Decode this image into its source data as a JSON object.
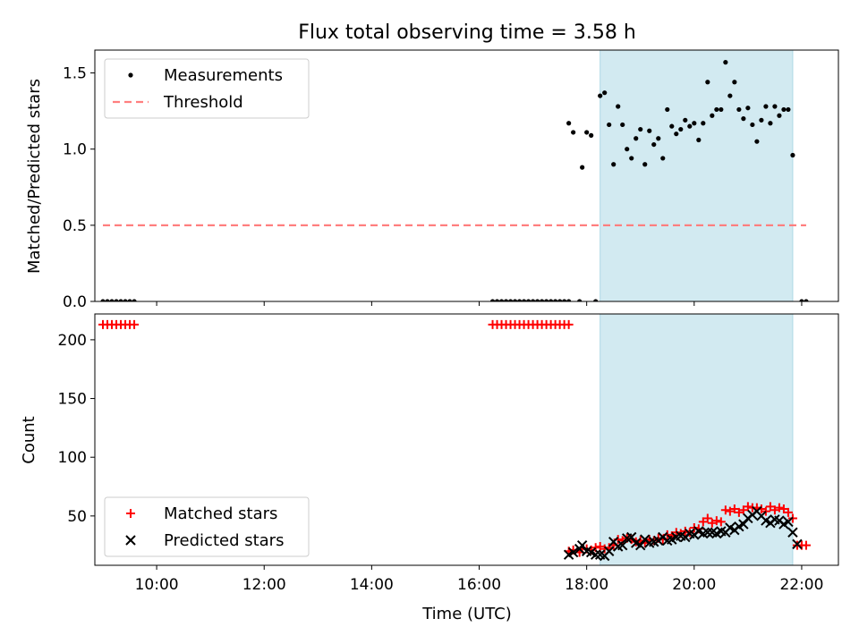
{
  "figure": {
    "title": "Flux total observing time = 3.58 h",
    "xlabel": "Time (UTC)"
  },
  "colors": {
    "measurement": "#000000",
    "threshold": "#ff7f7f",
    "matched": "#ff0000",
    "predicted": "#000000",
    "shade": "#add8e6"
  },
  "chart_data": [
    {
      "type": "scatter",
      "panel": "top",
      "ylabel": "Matched/Predicted stars",
      "xlim": [
        "08:51",
        "22:41"
      ],
      "ylim": [
        0,
        1.65
      ],
      "yticks": [
        0.0,
        0.5,
        1.0,
        1.5
      ],
      "ytick_labels": [
        "0.0",
        "0.5",
        "1.0",
        "1.5"
      ],
      "x_ticks_labeled": false,
      "legend_position": "upper left",
      "shaded_interval": [
        "18:15",
        "21:50"
      ],
      "series": [
        {
          "name": "Measurements",
          "kind": "points",
          "points": [
            [
              "09:00",
              0
            ],
            [
              "09:05",
              0
            ],
            [
              "09:10",
              0
            ],
            [
              "09:15",
              0
            ],
            [
              "09:20",
              0
            ],
            [
              "09:25",
              0
            ],
            [
              "09:30",
              0
            ],
            [
              "09:35",
              0
            ],
            [
              "16:15",
              0
            ],
            [
              "16:20",
              0
            ],
            [
              "16:25",
              0
            ],
            [
              "16:30",
              0
            ],
            [
              "16:35",
              0
            ],
            [
              "16:40",
              0
            ],
            [
              "16:45",
              0
            ],
            [
              "16:50",
              0
            ],
            [
              "16:55",
              0
            ],
            [
              "17:00",
              0
            ],
            [
              "17:05",
              0
            ],
            [
              "17:10",
              0
            ],
            [
              "17:15",
              0
            ],
            [
              "17:20",
              0
            ],
            [
              "17:25",
              0
            ],
            [
              "17:30",
              0
            ],
            [
              "17:35",
              0
            ],
            [
              "17:40",
              0
            ],
            [
              "17:40",
              1.17
            ],
            [
              "17:45",
              1.11
            ],
            [
              "17:52",
              0
            ],
            [
              "17:55",
              0.88
            ],
            [
              "18:00",
              1.11
            ],
            [
              "18:05",
              1.09
            ],
            [
              "18:10",
              0
            ],
            [
              "18:15",
              1.35
            ],
            [
              "18:20",
              1.37
            ],
            [
              "18:25",
              1.16
            ],
            [
              "18:30",
              0.9
            ],
            [
              "18:35",
              1.28
            ],
            [
              "18:40",
              1.16
            ],
            [
              "18:45",
              1.0
            ],
            [
              "18:50",
              0.94
            ],
            [
              "18:55",
              1.07
            ],
            [
              "19:00",
              1.13
            ],
            [
              "19:05",
              0.9
            ],
            [
              "19:10",
              1.12
            ],
            [
              "19:15",
              1.03
            ],
            [
              "19:20",
              1.07
            ],
            [
              "19:25",
              0.94
            ],
            [
              "19:30",
              1.26
            ],
            [
              "19:35",
              1.15
            ],
            [
              "19:40",
              1.1
            ],
            [
              "19:45",
              1.13
            ],
            [
              "19:50",
              1.19
            ],
            [
              "19:55",
              1.15
            ],
            [
              "20:00",
              1.17
            ],
            [
              "20:05",
              1.06
            ],
            [
              "20:10",
              1.17
            ],
            [
              "20:15",
              1.44
            ],
            [
              "20:20",
              1.22
            ],
            [
              "20:25",
              1.26
            ],
            [
              "20:30",
              1.26
            ],
            [
              "20:35",
              1.57
            ],
            [
              "20:40",
              1.35
            ],
            [
              "20:45",
              1.44
            ],
            [
              "20:50",
              1.26
            ],
            [
              "20:55",
              1.2
            ],
            [
              "21:00",
              1.27
            ],
            [
              "21:05",
              1.16
            ],
            [
              "21:10",
              1.05
            ],
            [
              "21:15",
              1.19
            ],
            [
              "21:20",
              1.28
            ],
            [
              "21:25",
              1.17
            ],
            [
              "21:30",
              1.28
            ],
            [
              "21:35",
              1.22
            ],
            [
              "21:40",
              1.26
            ],
            [
              "21:45",
              1.26
            ],
            [
              "21:50",
              0.96
            ],
            [
              "22:00",
              0
            ],
            [
              "22:05",
              0
            ]
          ]
        },
        {
          "name": "Threshold",
          "kind": "dashed-line",
          "points": [
            [
              "09:00",
              0.5
            ],
            [
              "22:05",
              0.5
            ]
          ]
        }
      ]
    },
    {
      "type": "scatter",
      "panel": "bottom",
      "ylabel": "Count",
      "xlim": [
        "08:51",
        "22:41"
      ],
      "ylim": [
        8,
        222
      ],
      "yticks": [
        50,
        100,
        150,
        200
      ],
      "ytick_labels": [
        "50",
        "100",
        "150",
        "200"
      ],
      "xticks": [
        "10:00",
        "12:00",
        "14:00",
        "16:00",
        "18:00",
        "20:00",
        "22:00"
      ],
      "xtick_labels": [
        "10:00",
        "12:00",
        "14:00",
        "16:00",
        "18:00",
        "20:00",
        "22:00"
      ],
      "legend_position": "lower left",
      "shaded_interval": [
        "18:15",
        "21:50"
      ],
      "series": [
        {
          "name": "Matched stars",
          "marker": "plus",
          "points": [
            [
              "09:00",
              213
            ],
            [
              "09:05",
              213
            ],
            [
              "09:10",
              213
            ],
            [
              "09:15",
              213
            ],
            [
              "09:20",
              213
            ],
            [
              "09:25",
              213
            ],
            [
              "09:30",
              213
            ],
            [
              "09:35",
              213
            ],
            [
              "16:15",
              213
            ],
            [
              "16:20",
              213
            ],
            [
              "16:25",
              213
            ],
            [
              "16:30",
              213
            ],
            [
              "16:35",
              213
            ],
            [
              "16:40",
              213
            ],
            [
              "16:45",
              213
            ],
            [
              "16:50",
              213
            ],
            [
              "16:55",
              213
            ],
            [
              "17:00",
              213
            ],
            [
              "17:05",
              213
            ],
            [
              "17:10",
              213
            ],
            [
              "17:15",
              213
            ],
            [
              "17:20",
              213
            ],
            [
              "17:25",
              213
            ],
            [
              "17:30",
              213
            ],
            [
              "17:35",
              213
            ],
            [
              "17:40",
              213
            ],
            [
              "17:40",
              20
            ],
            [
              "17:45",
              21
            ],
            [
              "17:52",
              19
            ],
            [
              "17:55",
              22
            ],
            [
              "18:00",
              22
            ],
            [
              "18:05",
              21
            ],
            [
              "18:10",
              23
            ],
            [
              "18:15",
              24
            ],
            [
              "18:20",
              22
            ],
            [
              "18:25",
              23
            ],
            [
              "18:30",
              25
            ],
            [
              "18:35",
              30
            ],
            [
              "18:40",
              29
            ],
            [
              "18:45",
              31
            ],
            [
              "18:50",
              30
            ],
            [
              "18:55",
              28
            ],
            [
              "19:00",
              29
            ],
            [
              "19:05",
              27
            ],
            [
              "19:10",
              30
            ],
            [
              "19:15",
              29
            ],
            [
              "19:20",
              31
            ],
            [
              "19:25",
              30
            ],
            [
              "19:30",
              34
            ],
            [
              "19:35",
              33
            ],
            [
              "19:40",
              36
            ],
            [
              "19:45",
              35
            ],
            [
              "19:50",
              37
            ],
            [
              "19:55",
              36
            ],
            [
              "20:00",
              40
            ],
            [
              "20:05",
              39
            ],
            [
              "20:10",
              45
            ],
            [
              "20:15",
              48
            ],
            [
              "20:20",
              44
            ],
            [
              "20:25",
              46
            ],
            [
              "20:30",
              45
            ],
            [
              "20:35",
              55
            ],
            [
              "20:40",
              54
            ],
            [
              "20:45",
              56
            ],
            [
              "20:50",
              53
            ],
            [
              "20:55",
              55
            ],
            [
              "21:00",
              58
            ],
            [
              "21:05",
              57
            ],
            [
              "21:10",
              57
            ],
            [
              "21:15",
              56
            ],
            [
              "21:20",
              54
            ],
            [
              "21:25",
              58
            ],
            [
              "21:30",
              55
            ],
            [
              "21:35",
              57
            ],
            [
              "21:40",
              56
            ],
            [
              "21:45",
              53
            ],
            [
              "21:50",
              48
            ],
            [
              "21:55",
              25
            ],
            [
              "22:00",
              25
            ],
            [
              "22:05",
              25
            ]
          ]
        },
        {
          "name": "Predicted stars",
          "marker": "x",
          "points": [
            [
              "17:40",
              17
            ],
            [
              "17:45",
              19
            ],
            [
              "17:52",
              22
            ],
            [
              "17:55",
              25
            ],
            [
              "18:00",
              20
            ],
            [
              "18:05",
              19
            ],
            [
              "18:10",
              17
            ],
            [
              "18:15",
              17
            ],
            [
              "18:20",
              16
            ],
            [
              "18:25",
              20
            ],
            [
              "18:30",
              28
            ],
            [
              "18:35",
              24
            ],
            [
              "18:40",
              25
            ],
            [
              "18:45",
              31
            ],
            [
              "18:50",
              32
            ],
            [
              "18:55",
              27
            ],
            [
              "19:00",
              25
            ],
            [
              "19:05",
              30
            ],
            [
              "19:10",
              27
            ],
            [
              "19:15",
              28
            ],
            [
              "19:20",
              29
            ],
            [
              "19:25",
              32
            ],
            [
              "19:30",
              29
            ],
            [
              "19:35",
              30
            ],
            [
              "19:40",
              32
            ],
            [
              "19:45",
              33
            ],
            [
              "19:50",
              32
            ],
            [
              "19:55",
              35
            ],
            [
              "20:00",
              34
            ],
            [
              "20:05",
              37
            ],
            [
              "20:10",
              35
            ],
            [
              "20:15",
              36
            ],
            [
              "20:20",
              36
            ],
            [
              "20:25",
              35
            ],
            [
              "20:30",
              37
            ],
            [
              "20:35",
              36
            ],
            [
              "20:40",
              40
            ],
            [
              "20:45",
              38
            ],
            [
              "20:50",
              41
            ],
            [
              "20:55",
              43
            ],
            [
              "21:00",
              48
            ],
            [
              "21:05",
              51
            ],
            [
              "21:10",
              54
            ],
            [
              "21:15",
              50
            ],
            [
              "21:20",
              46
            ],
            [
              "21:25",
              44
            ],
            [
              "21:30",
              47
            ],
            [
              "21:35",
              46
            ],
            [
              "21:40",
              43
            ],
            [
              "21:45",
              45
            ],
            [
              "21:50",
              36
            ],
            [
              "21:55",
              26
            ]
          ]
        }
      ]
    }
  ]
}
